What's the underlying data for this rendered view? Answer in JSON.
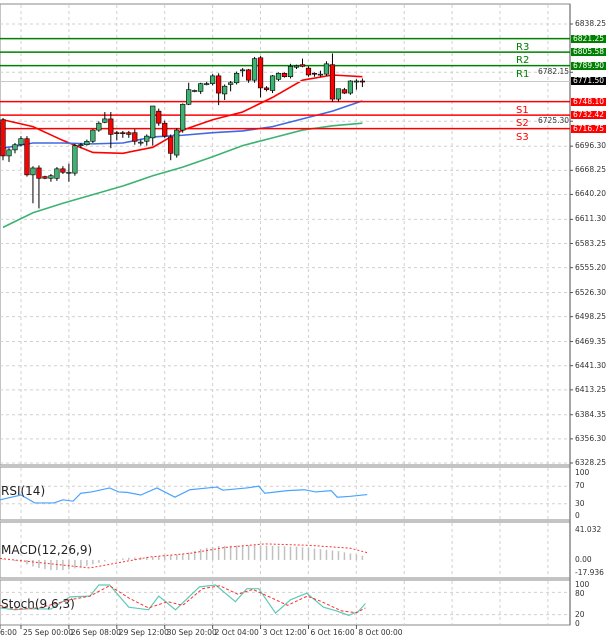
{
  "price_axis": [
    "6838.25",
    "6696.30",
    "6668.25",
    "6640.20",
    "6611.30",
    "6583.25",
    "6555.20",
    "6526.30",
    "6498.25",
    "6469.35",
    "6441.30",
    "6413.25",
    "6384.35",
    "6356.30",
    "6328.25",
    "6782.15",
    "6725.30"
  ],
  "price_range": [
    6328.25,
    6838.25
  ],
  "current_price": {
    "label": "6771.50",
    "value": 6771.5,
    "color": "#000000"
  },
  "levels": [
    {
      "name": "R3",
      "value": 6821.25,
      "label": "6821.25",
      "color": "#008000"
    },
    {
      "name": "R2",
      "value": 6805.58,
      "label": "6805.58",
      "color": "#008000"
    },
    {
      "name": "R1",
      "value": 6789.9,
      "label": "6789.90",
      "color": "#008000"
    },
    {
      "name": "S1",
      "value": 6748.1,
      "label": "6748.10",
      "color": "#ff0000"
    },
    {
      "name": "S2",
      "value": 6732.42,
      "label": "6732.42",
      "color": "#ff0000"
    },
    {
      "name": "S3",
      "value": 6716.75,
      "label": "6716.75",
      "color": "#ff0000"
    }
  ],
  "candles": [
    [
      6727,
      6729,
      6680,
      6685
    ],
    [
      6685,
      6694,
      6678,
      6692
    ],
    [
      6692,
      6700,
      6688,
      6698
    ],
    [
      6698,
      6708,
      6696,
      6705
    ],
    [
      6705,
      6708,
      6661,
      6663
    ],
    [
      6663,
      6673,
      6630,
      6671
    ],
    [
      6671,
      6674,
      6624,
      6659
    ],
    [
      6661,
      6662,
      6658,
      6659
    ],
    [
      6659,
      6664,
      6655,
      6662
    ],
    [
      6659,
      6672,
      6656,
      6670
    ],
    [
      6670,
      6673,
      6664,
      6666
    ],
    [
      6665,
      6676,
      6655,
      6666
    ],
    [
      6665,
      6699,
      6662,
      6697
    ],
    [
      6697,
      6700,
      6694,
      6698
    ],
    [
      6698,
      6704,
      6697,
      6702
    ],
    [
      6702,
      6716,
      6700,
      6715
    ],
    [
      6715,
      6725,
      6713,
      6723
    ],
    [
      6724,
      6736,
      6723,
      6728
    ],
    [
      6728,
      6736,
      6694,
      6710
    ],
    [
      6712,
      6714,
      6703,
      6711
    ],
    [
      6712,
      6714,
      6706,
      6711
    ],
    [
      6712,
      6714,
      6706,
      6710
    ],
    [
      6712,
      6716,
      6698,
      6702
    ],
    [
      6701,
      6704,
      6697,
      6701
    ],
    [
      6702,
      6710,
      6697,
      6708
    ],
    [
      6706,
      6743,
      6697,
      6743
    ],
    [
      6737,
      6740,
      6720,
      6723
    ],
    [
      6723,
      6726,
      6706,
      6708
    ],
    [
      6707,
      6710,
      6680,
      6688
    ],
    [
      6686,
      6717,
      6683,
      6715
    ],
    [
      6715,
      6746,
      6712,
      6745
    ],
    [
      6745,
      6770,
      6744,
      6762
    ],
    [
      6760,
      6762,
      6759,
      6761
    ],
    [
      6760,
      6770,
      6757,
      6769
    ],
    [
      6769,
      6771,
      6767,
      6769
    ],
    [
      6769,
      6780,
      6767,
      6778
    ],
    [
      6778,
      6781,
      6744,
      6758
    ],
    [
      6757,
      6768,
      6750,
      6766
    ],
    [
      6768,
      6772,
      6760,
      6770
    ],
    [
      6770,
      6783,
      6768,
      6781
    ],
    [
      6784,
      6787,
      6777,
      6785
    ],
    [
      6785,
      6786,
      6770,
      6773
    ],
    [
      6773,
      6800,
      6770,
      6798
    ],
    [
      6799,
      6801,
      6753,
      6764
    ],
    [
      6764,
      6766,
      6760,
      6762
    ],
    [
      6761,
      6779,
      6758,
      6778
    ],
    [
      6774,
      6782,
      6772,
      6781
    ],
    [
      6781,
      6782,
      6776,
      6777
    ],
    [
      6777,
      6792,
      6775,
      6789
    ],
    [
      6788,
      6791,
      6786,
      6789.5
    ],
    [
      6791,
      6798,
      6788,
      6789
    ],
    [
      6787,
      6789,
      6777,
      6779
    ],
    [
      6781,
      6782,
      6777,
      6780
    ],
    [
      6780,
      6784,
      6777,
      6780
    ],
    [
      6780,
      6795,
      6778,
      6792
    ],
    [
      6791,
      6804,
      6748,
      6751
    ],
    [
      6751,
      6763,
      6748,
      6763
    ],
    [
      6762,
      6764,
      6757,
      6758
    ],
    [
      6758,
      6773,
      6756,
      6772
    ],
    [
      6772,
      6774,
      6762,
      6772
    ],
    [
      6772,
      6775,
      6765,
      6771.5
    ]
  ],
  "moving_averages": [
    {
      "name": "ma-red",
      "color": "#ff0000",
      "values": [
        6727,
        6719,
        6703,
        6689,
        6688,
        6695,
        6715,
        6727,
        6736,
        6753,
        6773,
        6779,
        6777
      ]
    },
    {
      "name": "ma-blue",
      "color": "#4169e1",
      "values": [
        6694,
        6700,
        6700,
        6699,
        6700,
        6707,
        6709,
        6712,
        6714,
        6719,
        6728,
        6737,
        6749
      ]
    },
    {
      "name": "ma-green",
      "color": "#3cb371",
      "values": [
        6602,
        6619,
        6630,
        6640,
        6650,
        6662,
        6672,
        6684,
        6697,
        6706,
        6715,
        6720,
        6723
      ]
    }
  ],
  "rsi": {
    "label": "RSI(14)",
    "axis": [
      "100",
      "70",
      "30",
      "0"
    ],
    "color": "#4aa3ff",
    "points": [
      [
        -0.5,
        39
      ],
      [
        3,
        50
      ],
      [
        5.3,
        32
      ],
      [
        8.5,
        32
      ],
      [
        10,
        39
      ],
      [
        11.7,
        36
      ],
      [
        13,
        54
      ],
      [
        14.8,
        57
      ],
      [
        17.8,
        66
      ],
      [
        19.3,
        57
      ],
      [
        20.7,
        56
      ],
      [
        23,
        50
      ],
      [
        25.7,
        66
      ],
      [
        28.7,
        45
      ],
      [
        31.2,
        62
      ],
      [
        34.2,
        66
      ],
      [
        35.7,
        68
      ],
      [
        36.7,
        61
      ],
      [
        40.7,
        66
      ],
      [
        42.7,
        70
      ],
      [
        43.7,
        54
      ],
      [
        47.5,
        60
      ],
      [
        50.3,
        62
      ],
      [
        52.2,
        57
      ],
      [
        54.8,
        60
      ],
      [
        55.8,
        45
      ],
      [
        58,
        47
      ],
      [
        60.8,
        51
      ]
    ]
  },
  "macd": {
    "label": "MACD(12,26,9)",
    "axis": [
      "41.032",
      "0.00",
      "-17.936"
    ],
    "range": [
      -17.936,
      41.032
    ],
    "hist_points": [
      [
        0,
        1
      ],
      [
        3,
        -3
      ],
      [
        5.3,
        -10
      ],
      [
        8,
        -14
      ],
      [
        10.5,
        -14
      ],
      [
        13,
        -10
      ],
      [
        15.5,
        -5
      ],
      [
        18,
        0
      ],
      [
        21,
        3
      ],
      [
        24.5,
        4
      ],
      [
        27.8,
        6
      ],
      [
        31,
        10
      ],
      [
        33.5,
        16
      ],
      [
        36,
        19
      ],
      [
        39.5,
        20
      ],
      [
        42.8,
        20
      ],
      [
        46,
        19
      ],
      [
        49.3,
        18
      ],
      [
        52.7,
        15
      ],
      [
        56,
        12
      ],
      [
        58.5,
        8
      ],
      [
        60.5,
        5
      ]
    ],
    "signal_points": [
      [
        -0.5,
        2
      ],
      [
        14.5,
        -11
      ],
      [
        24.5,
        4
      ],
      [
        31.2,
        9
      ],
      [
        37,
        17
      ],
      [
        43.7,
        22
      ],
      [
        51.2,
        20
      ],
      [
        58,
        16
      ],
      [
        60.8,
        10
      ]
    ]
  },
  "stoch": {
    "label": "Stoch(9,6,3)",
    "axis": [
      "100",
      "80",
      "20",
      "0"
    ],
    "main_points": [
      [
        -0.5,
        38
      ],
      [
        2,
        33
      ],
      [
        4.5,
        36
      ],
      [
        8,
        35
      ],
      [
        11.2,
        68
      ],
      [
        14.5,
        70
      ],
      [
        16,
        100
      ],
      [
        17.8,
        100
      ],
      [
        21,
        40
      ],
      [
        24.3,
        33
      ],
      [
        26,
        70
      ],
      [
        28.8,
        33
      ],
      [
        32.8,
        95
      ],
      [
        35.5,
        100
      ],
      [
        38.8,
        55
      ],
      [
        40.7,
        90
      ],
      [
        42.7,
        90
      ],
      [
        45.5,
        24
      ],
      [
        48,
        60
      ],
      [
        50.7,
        78
      ],
      [
        53.5,
        40
      ],
      [
        55.7,
        30
      ],
      [
        57.7,
        18
      ],
      [
        59.3,
        28
      ],
      [
        60.5,
        50
      ]
    ],
    "signal_points": [
      [
        -0.5,
        45
      ],
      [
        2,
        35
      ],
      [
        6,
        38
      ],
      [
        11.2,
        60
      ],
      [
        14.5,
        70
      ],
      [
        17.8,
        98
      ],
      [
        21,
        65
      ],
      [
        24.3,
        38
      ],
      [
        27.5,
        55
      ],
      [
        30,
        45
      ],
      [
        33.3,
        90
      ],
      [
        36.2,
        98
      ],
      [
        39.2,
        75
      ],
      [
        41.7,
        88
      ],
      [
        44.2,
        70
      ],
      [
        47.5,
        45
      ],
      [
        50.8,
        70
      ],
      [
        53.2,
        55
      ],
      [
        56.5,
        30
      ],
      [
        59,
        25
      ],
      [
        60.5,
        38
      ]
    ]
  },
  "time_axis": [
    {
      "bar": -4,
      "label": "6:00"
    },
    {
      "bar": 3,
      "label": "25 Sep 00:00"
    },
    {
      "bar": 11,
      "label": "26 Sep 08:00"
    },
    {
      "bar": 19,
      "label": "29 Sep 12:00"
    },
    {
      "bar": 27,
      "label": "30 Sep 20:00"
    },
    {
      "bar": 35,
      "label": "2 Oct 04:00"
    },
    {
      "bar": 43,
      "label": "3 Oct 12:00"
    },
    {
      "bar": 51,
      "label": "6 Oct 16:00"
    },
    {
      "bar": 59,
      "label": "8 Oct 00:00"
    }
  ],
  "colors": {
    "bull": "#3cb371",
    "bear": "#ff0000",
    "grid": "#d0d0d0",
    "stoch_main": "#5fc9b8",
    "stoch_signal": "#ff3030",
    "macd_hist": "#c0c0c0",
    "macd_signal": "#ff3030"
  }
}
